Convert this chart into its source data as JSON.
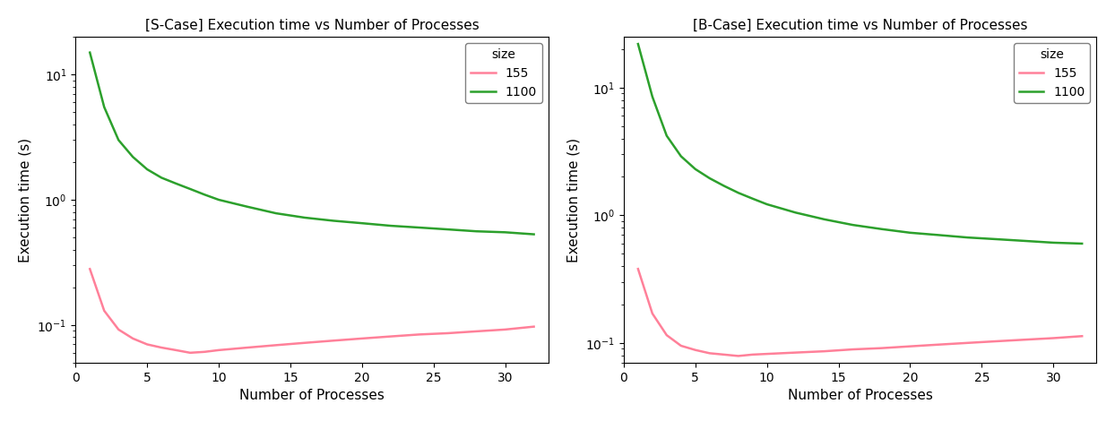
{
  "left_title": "[S-Case] Execution time vs Number of Processes",
  "right_title": "[B-Case] Execution time vs Number of Processes",
  "xlabel": "Number of Processes",
  "ylabel": "Execution time (s)",
  "legend_title": "size",
  "color_155": "#FF8099",
  "color_1100": "#2CA02C",
  "processes": [
    1,
    2,
    3,
    4,
    5,
    6,
    7,
    8,
    9,
    10,
    12,
    14,
    16,
    18,
    20,
    22,
    24,
    26,
    28,
    30,
    32
  ],
  "s_case_155": [
    0.28,
    0.13,
    0.092,
    0.078,
    0.07,
    0.066,
    0.063,
    0.06,
    0.061,
    0.063,
    0.066,
    0.069,
    0.072,
    0.075,
    0.078,
    0.081,
    0.084,
    0.086,
    0.089,
    0.092,
    0.097
  ],
  "s_case_1100": [
    15.0,
    5.5,
    3.0,
    2.2,
    1.75,
    1.5,
    1.35,
    1.22,
    1.1,
    1.0,
    0.88,
    0.78,
    0.72,
    0.68,
    0.65,
    0.62,
    0.6,
    0.58,
    0.56,
    0.55,
    0.53
  ],
  "b_case_155": [
    0.38,
    0.17,
    0.115,
    0.095,
    0.088,
    0.083,
    0.081,
    0.079,
    0.081,
    0.082,
    0.084,
    0.086,
    0.089,
    0.091,
    0.094,
    0.097,
    0.1,
    0.103,
    0.106,
    0.109,
    0.113
  ],
  "b_case_1100": [
    22.0,
    8.5,
    4.2,
    2.9,
    2.3,
    1.95,
    1.7,
    1.5,
    1.35,
    1.22,
    1.05,
    0.93,
    0.84,
    0.78,
    0.73,
    0.7,
    0.67,
    0.65,
    0.63,
    0.61,
    0.6
  ],
  "xlim": [
    0,
    33
  ],
  "xticks": [
    0,
    5,
    10,
    15,
    20,
    25,
    30
  ],
  "ylim_s": [
    0.05,
    20
  ],
  "ylim_b": [
    0.07,
    25
  ],
  "figsize": [
    12.44,
    4.7
  ],
  "dpi": 100
}
